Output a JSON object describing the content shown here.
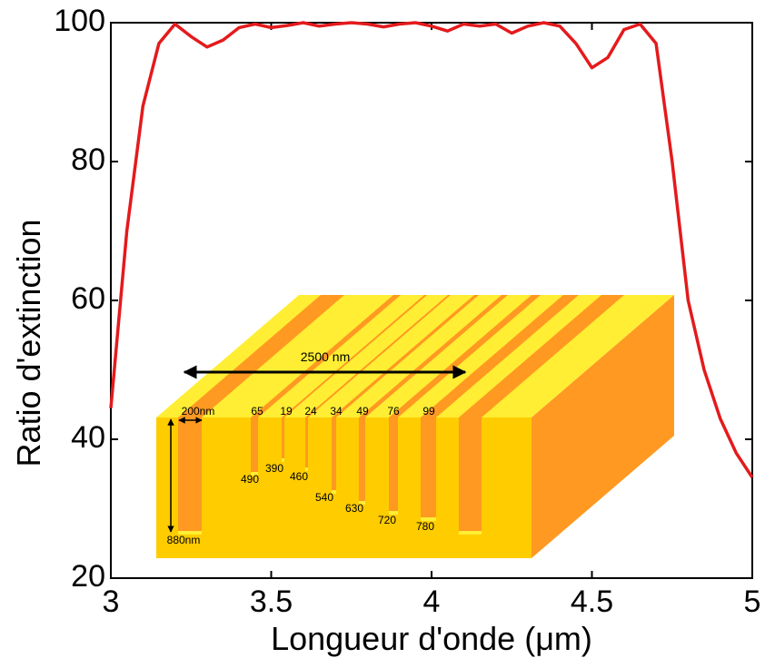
{
  "chart_data": {
    "type": "line",
    "x_label": "Longueur d'onde (μm)",
    "y_label": "Ratio d'extinction",
    "x": [
      3.0,
      3.05,
      3.1,
      3.15,
      3.2,
      3.25,
      3.3,
      3.35,
      3.4,
      3.45,
      3.5,
      3.55,
      3.6,
      3.65,
      3.7,
      3.75,
      3.8,
      3.85,
      3.9,
      3.95,
      4.0,
      4.05,
      4.1,
      4.15,
      4.2,
      4.25,
      4.3,
      4.35,
      4.4,
      4.45,
      4.5,
      4.55,
      4.6,
      4.65,
      4.7,
      4.75,
      4.8,
      4.85,
      4.9,
      4.95,
      5.0
    ],
    "series": [
      {
        "color": "#e41a1c",
        "values": [
          44.5,
          70,
          88,
          97,
          99.8,
          98,
          96.5,
          97.5,
          99.3,
          99.8,
          99.3,
          99.6,
          100,
          99.5,
          99.8,
          100,
          99.8,
          99.4,
          99.8,
          100,
          99.5,
          98.8,
          99.8,
          99.5,
          99.8,
          98.5,
          99.5,
          100,
          99.5,
          97,
          93.5,
          95,
          99,
          99.8,
          97,
          80,
          60,
          50,
          43,
          38,
          34.5
        ]
      }
    ],
    "xlim": [
      3,
      5
    ],
    "xticks": [
      3,
      3.5,
      4,
      4.5,
      5
    ],
    "ylim": [
      20,
      100
    ],
    "yticks": [
      20,
      40,
      60,
      80,
      100
    ],
    "inset": {
      "width_label": "2500 nm",
      "groove_width_label": "200nm",
      "height_label": "880nm",
      "top_labels": [
        "65",
        "19",
        "24",
        "34",
        "49",
        "76",
        "99"
      ],
      "depth_labels": [
        "490",
        "390",
        "460",
        "540",
        "630",
        "720",
        "780"
      ]
    }
  }
}
